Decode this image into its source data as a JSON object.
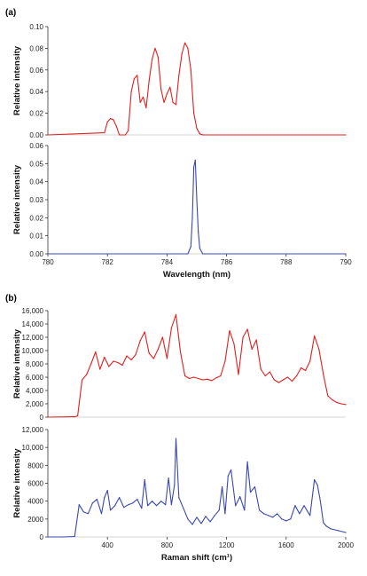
{
  "panel_a_label": "(a)",
  "panel_b_label": "(b)",
  "chart_data": [
    {
      "type": "line",
      "panel": "(a)",
      "ylabel": "Relative intensity",
      "xlim": [
        780,
        790
      ],
      "ylim": [
        0,
        0.1
      ],
      "yticks": [
        "0.00",
        "0.02",
        "0.04",
        "0.06",
        "0.08",
        "0.10"
      ],
      "grid": false,
      "series": [
        {
          "color": "#e02020",
          "x": [
            780,
            781.9,
            782.0,
            782.1,
            782.2,
            782.3,
            782.4,
            782.6,
            782.7,
            782.8,
            782.9,
            783.0,
            783.1,
            783.2,
            783.3,
            783.4,
            783.5,
            783.6,
            783.7,
            783.8,
            783.9,
            784.0,
            784.1,
            784.2,
            784.3,
            784.4,
            784.5,
            784.6,
            784.7,
            784.8,
            784.9,
            785.0,
            785.1,
            785.2,
            790
          ],
          "y": [
            0,
            0.002,
            0.012,
            0.015,
            0.014,
            0.008,
            0.0,
            0.0,
            0.004,
            0.04,
            0.052,
            0.055,
            0.03,
            0.035,
            0.025,
            0.05,
            0.07,
            0.08,
            0.072,
            0.042,
            0.03,
            0.038,
            0.044,
            0.03,
            0.028,
            0.055,
            0.075,
            0.085,
            0.08,
            0.06,
            0.02,
            0.006,
            0.001,
            0.0,
            0
          ]
        }
      ]
    },
    {
      "type": "line",
      "ylabel": "Relative intensity",
      "xlabel": "Wavelength (nm)",
      "xlim": [
        780,
        790
      ],
      "ylim": [
        0,
        0.06
      ],
      "xticks": [
        "780",
        "782",
        "784",
        "786",
        "788",
        "790"
      ],
      "yticks": [
        "0.00",
        "0.01",
        "0.02",
        "0.03",
        "0.04",
        "0.05",
        "0.06"
      ],
      "grid": false,
      "series": [
        {
          "color": "#3a48b0",
          "x": [
            780,
            784.7,
            784.8,
            784.85,
            784.9,
            784.95,
            785.0,
            785.05,
            785.1,
            785.2,
            790
          ],
          "y": [
            0,
            0,
            0.004,
            0.02,
            0.048,
            0.052,
            0.03,
            0.012,
            0.003,
            0,
            0
          ]
        }
      ]
    },
    {
      "type": "line",
      "panel": "(b)",
      "ylabel": "Relative intensity",
      "xlim": [
        0,
        2000
      ],
      "ylim": [
        0,
        16000
      ],
      "yticks": [
        "0",
        "2,000",
        "4,000",
        "6,000",
        "8,000",
        "10,000",
        "12,000",
        "14,000",
        "16,000"
      ],
      "grid": false,
      "series": [
        {
          "color": "#e02020",
          "x": [
            0,
            180,
            200,
            230,
            260,
            290,
            320,
            350,
            380,
            410,
            440,
            470,
            500,
            530,
            560,
            590,
            620,
            650,
            680,
            710,
            740,
            770,
            800,
            830,
            860,
            890,
            920,
            950,
            980,
            1010,
            1040,
            1070,
            1100,
            1130,
            1160,
            1190,
            1220,
            1250,
            1280,
            1310,
            1340,
            1370,
            1400,
            1430,
            1460,
            1490,
            1520,
            1550,
            1580,
            1610,
            1640,
            1670,
            1700,
            1730,
            1760,
            1790,
            1820,
            1850,
            1880,
            1910,
            1940,
            1970,
            2000
          ],
          "y": [
            0,
            50,
            200,
            5600,
            6400,
            8000,
            9800,
            7200,
            9000,
            7600,
            8400,
            8200,
            7800,
            9200,
            8600,
            9400,
            11500,
            12800,
            9600,
            8800,
            10200,
            12000,
            8800,
            13400,
            15400,
            9800,
            6200,
            5800,
            6000,
            5800,
            5600,
            5700,
            5500,
            5900,
            6200,
            8400,
            13000,
            11000,
            6400,
            12000,
            13200,
            10200,
            11600,
            7200,
            6200,
            6800,
            5600,
            5200,
            5600,
            6000,
            5400,
            6200,
            7400,
            7000,
            8400,
            12200,
            10200,
            6400,
            3200,
            2600,
            2200,
            2000,
            1900
          ]
        }
      ]
    },
    {
      "type": "line",
      "ylabel": "Relative intensity",
      "xlabel": "Raman shift (cm¹)",
      "xlim": [
        0,
        2000
      ],
      "ylim": [
        0,
        12000
      ],
      "xticks": [
        "400",
        "800",
        "1200",
        "1600",
        "2000"
      ],
      "yticks": [
        "0",
        "2000",
        "4000",
        "6000",
        "8000",
        "10,000",
        "12,000"
      ],
      "grid": false,
      "series": [
        {
          "color": "#3a48b0",
          "x": [
            0,
            100,
            180,
            210,
            240,
            270,
            300,
            330,
            360,
            380,
            400,
            420,
            450,
            480,
            510,
            540,
            570,
            600,
            630,
            650,
            670,
            700,
            730,
            760,
            790,
            810,
            830,
            850,
            860,
            880,
            910,
            940,
            970,
            1000,
            1030,
            1060,
            1090,
            1120,
            1150,
            1170,
            1190,
            1210,
            1230,
            1260,
            1290,
            1320,
            1340,
            1360,
            1390,
            1420,
            1450,
            1480,
            1510,
            1540,
            1570,
            1600,
            1630,
            1660,
            1690,
            1720,
            1760,
            1790,
            1810,
            1830,
            1850,
            1870,
            1900,
            1950,
            2000
          ],
          "y": [
            0,
            0,
            50,
            3600,
            2800,
            2600,
            3800,
            4200,
            2600,
            4400,
            5200,
            3000,
            3500,
            4400,
            3300,
            3600,
            3800,
            4200,
            3200,
            6400,
            3500,
            4000,
            3500,
            4000,
            3600,
            6600,
            3600,
            5800,
            11000,
            4400,
            3200,
            2000,
            1400,
            2200,
            1500,
            2300,
            1700,
            2400,
            3000,
            5600,
            2600,
            6800,
            7500,
            3500,
            4500,
            3000,
            8400,
            5000,
            5600,
            3000,
            2600,
            2400,
            2200,
            2600,
            2000,
            1800,
            2000,
            3500,
            2600,
            3500,
            2400,
            6400,
            5800,
            4000,
            1600,
            1200,
            900,
            700,
            500
          ]
        }
      ]
    }
  ]
}
